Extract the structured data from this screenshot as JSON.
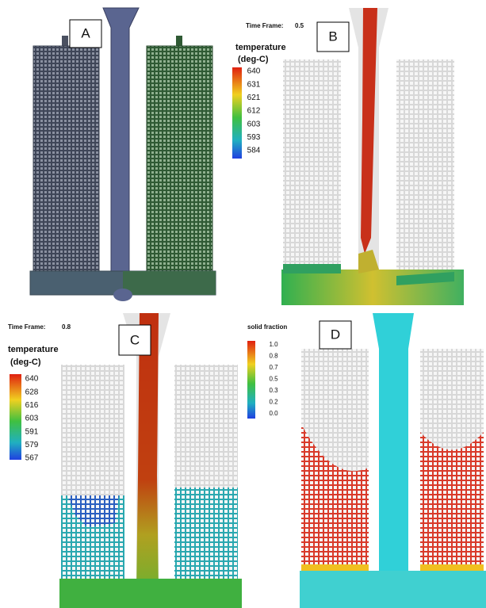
{
  "panels": [
    {
      "label": "A"
    },
    {
      "label": "B",
      "time_frame_label": "Time Frame:",
      "time_frame_value": "0.5",
      "legend_title": "temperature",
      "legend_unit": "(deg-C)",
      "legend_ticks": [
        "640",
        "631",
        "621",
        "612",
        "603",
        "593",
        "584"
      ]
    },
    {
      "label": "C",
      "time_frame_label": "Time Frame:",
      "time_frame_value": "0.8",
      "legend_title": "temperature",
      "legend_unit": "(deg-C)",
      "legend_ticks": [
        "640",
        "628",
        "616",
        "603",
        "591",
        "579",
        "567"
      ]
    },
    {
      "label": "D",
      "legend_title": "solid fraction",
      "legend_ticks": [
        "1.0",
        "0.8",
        "0.7",
        "0.5",
        "0.3",
        "0.2",
        "0.0"
      ]
    }
  ]
}
